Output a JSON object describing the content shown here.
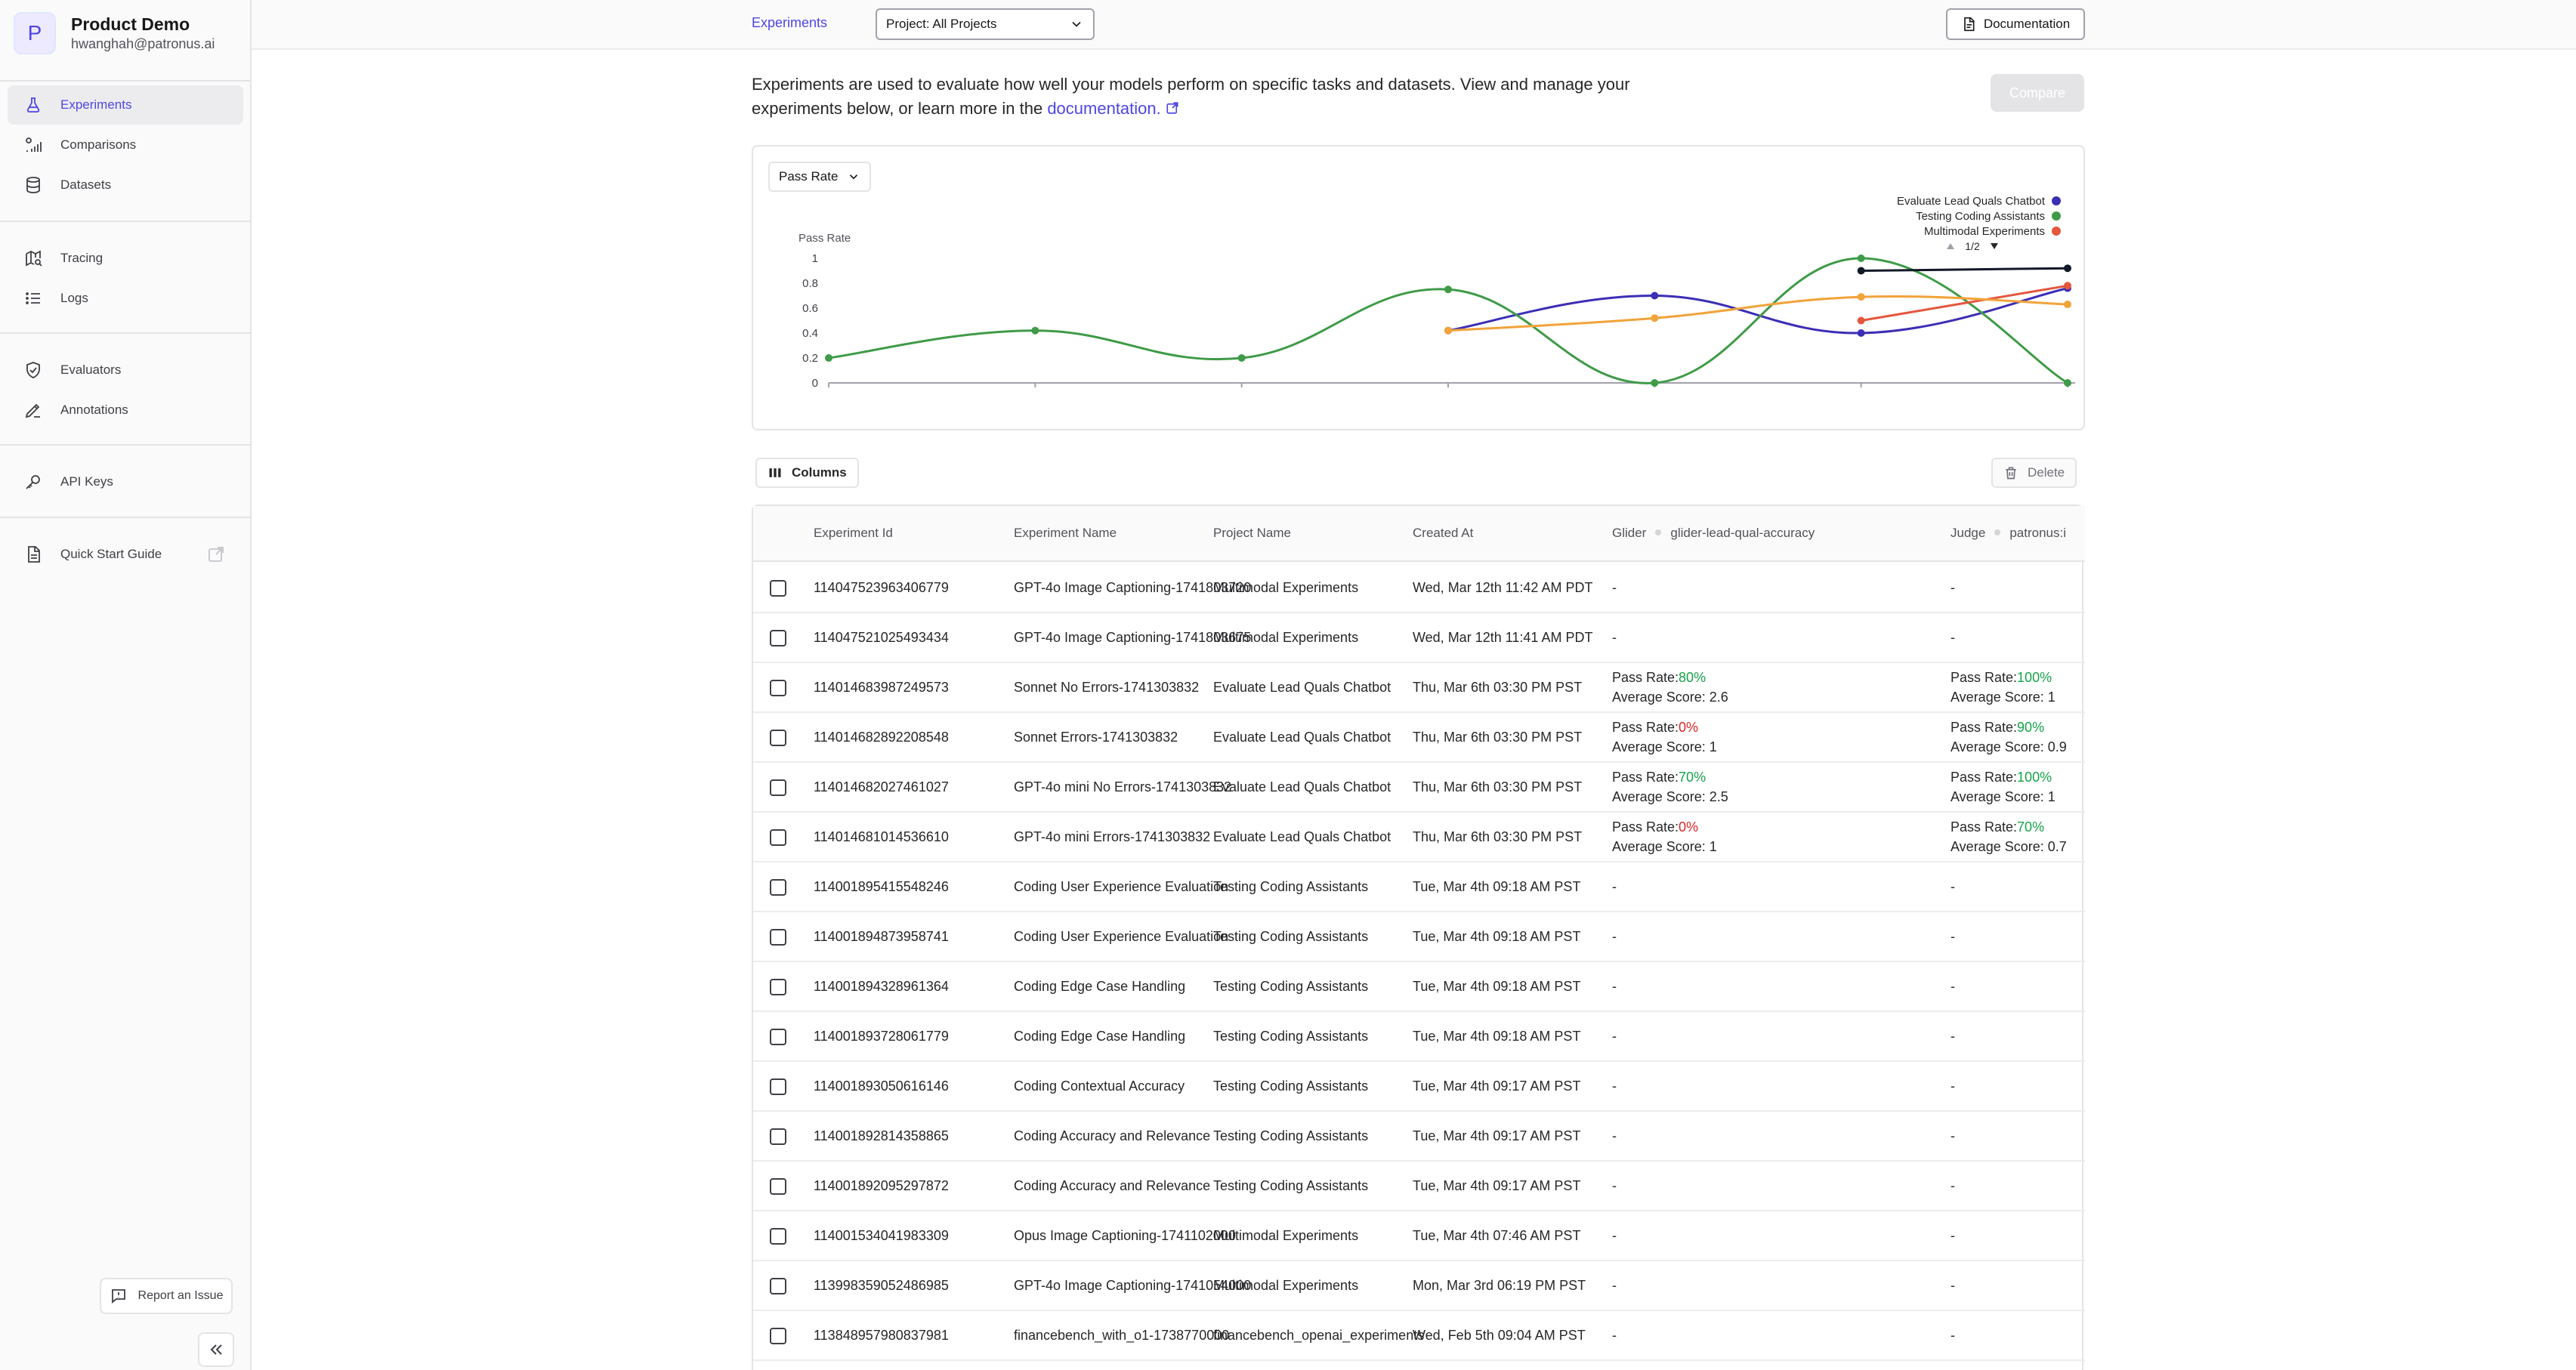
{
  "org": {
    "initial": "P",
    "name": "Product Demo",
    "email": "hwanghah@patronus.ai"
  },
  "nav": {
    "experiments": "Experiments",
    "comparisons": "Comparisons",
    "datasets": "Datasets",
    "tracing": "Tracing",
    "logs": "Logs",
    "evaluators": "Evaluators",
    "annotations": "Annotations",
    "api_keys": "API Keys",
    "quick_start": "Quick Start Guide"
  },
  "report_issue": "Report an Issue",
  "topbar": {
    "breadcrumb": "Experiments",
    "project_select": "Project: All Projects",
    "documentation": "Documentation"
  },
  "intro": {
    "text": "Experiments are used to evaluate how well your models perform on specific tasks and datasets. View and manage your experiments below, or learn more in the ",
    "link": "documentation."
  },
  "compare_button": "Compare",
  "chart_controls": {
    "metric": "Pass Rate",
    "pager": "1/2"
  },
  "chart_data": {
    "type": "line",
    "ylabel": "Pass Rate",
    "ylim": [
      0,
      1
    ],
    "yticks": [
      "0",
      "0.2",
      "0.4",
      "0.6",
      "0.8",
      "1"
    ],
    "legend_position": "top-right",
    "series": [
      {
        "name": "Evaluate Lead Quals Chatbot",
        "color": "#3b2fb5",
        "points": [
          [
            3,
            0.42
          ],
          [
            4,
            0.7
          ],
          [
            5,
            0.4
          ],
          [
            6,
            0.76
          ]
        ]
      },
      {
        "name": "Testing Coding Assistants",
        "color": "#3f9b48",
        "points": [
          [
            0,
            0.2
          ],
          [
            1,
            0.42
          ],
          [
            2,
            0.2
          ],
          [
            3,
            0.75
          ],
          [
            4,
            0.0
          ],
          [
            5,
            1.0
          ],
          [
            6,
            0.0
          ]
        ]
      },
      {
        "name": "Multimodal Experiments",
        "color": "#e4573d",
        "points": [
          [
            5,
            0.5
          ],
          [
            6,
            0.78
          ]
        ]
      },
      {
        "color": "#f2a33a",
        "points": [
          [
            3,
            0.42
          ],
          [
            4,
            0.52
          ],
          [
            5,
            0.69
          ],
          [
            6,
            0.63
          ]
        ]
      },
      {
        "color": "#111827",
        "points": [
          [
            5,
            0.9
          ],
          [
            6,
            0.92
          ]
        ]
      }
    ]
  },
  "toolbar": {
    "columns": "Columns",
    "delete": "Delete"
  },
  "table": {
    "headers": {
      "id": "Experiment Id",
      "name": "Experiment Name",
      "project": "Project Name",
      "created": "Created At",
      "glider": "Glider",
      "glider_criteria": "glider-lead-qual-accuracy",
      "judge": "Judge",
      "judge_criteria": "patronus:i"
    },
    "labels": {
      "pass_rate": "Pass Rate:",
      "avg_score": "Average Score: "
    },
    "rows": [
      {
        "id": "114047523963406779",
        "name": "GPT-4o Image Captioning-1741803720",
        "project": "Multimodal Experiments",
        "created": "Wed, Mar 12th 11:42 AM PDT",
        "glider": "-",
        "judge": "-"
      },
      {
        "id": "114047521025493434",
        "name": "GPT-4o Image Captioning-1741803675",
        "project": "Multimodal Experiments",
        "created": "Wed, Mar 12th 11:41 AM PDT",
        "glider": "-",
        "judge": "-"
      },
      {
        "id": "114014683987249573",
        "name": "Sonnet No Errors-1741303832",
        "project": "Evaluate Lead Quals Chatbot",
        "created": "Thu, Mar 6th 03:30 PM PST",
        "glider_pass": "80%",
        "glider_pass_good": true,
        "glider_avg": "2.6",
        "judge_pass": "100%",
        "judge_pass_good": true,
        "judge_avg": "1"
      },
      {
        "id": "114014682892208548",
        "name": "Sonnet Errors-1741303832",
        "project": "Evaluate Lead Quals Chatbot",
        "created": "Thu, Mar 6th 03:30 PM PST",
        "glider_pass": "0%",
        "glider_pass_good": false,
        "glider_avg": "1",
        "judge_pass": "90%",
        "judge_pass_good": true,
        "judge_avg": "0.9"
      },
      {
        "id": "114014682027461027",
        "name": "GPT-4o mini No Errors-1741303832",
        "project": "Evaluate Lead Quals Chatbot",
        "created": "Thu, Mar 6th 03:30 PM PST",
        "glider_pass": "70%",
        "glider_pass_good": true,
        "glider_avg": "2.5",
        "judge_pass": "100%",
        "judge_pass_good": true,
        "judge_avg": "1"
      },
      {
        "id": "114014681014536610",
        "name": "GPT-4o mini Errors-1741303832",
        "project": "Evaluate Lead Quals Chatbot",
        "created": "Thu, Mar 6th 03:30 PM PST",
        "glider_pass": "0%",
        "glider_pass_good": false,
        "glider_avg": "1",
        "judge_pass": "70%",
        "judge_pass_good": true,
        "judge_avg": "0.7"
      },
      {
        "id": "114001895415548246",
        "name": "Coding User Experience Evaluation",
        "project": "Testing Coding Assistants",
        "created": "Tue, Mar 4th 09:18 AM PST",
        "glider": "-",
        "judge": "-"
      },
      {
        "id": "114001894873958741",
        "name": "Coding User Experience Evaluation",
        "project": "Testing Coding Assistants",
        "created": "Tue, Mar 4th 09:18 AM PST",
        "glider": "-",
        "judge": "-"
      },
      {
        "id": "114001894328961364",
        "name": "Coding Edge Case Handling",
        "project": "Testing Coding Assistants",
        "created": "Tue, Mar 4th 09:18 AM PST",
        "glider": "-",
        "judge": "-"
      },
      {
        "id": "114001893728061779",
        "name": "Coding Edge Case Handling",
        "project": "Testing Coding Assistants",
        "created": "Tue, Mar 4th 09:18 AM PST",
        "glider": "-",
        "judge": "-"
      },
      {
        "id": "114001893050616146",
        "name": "Coding Contextual Accuracy",
        "project": "Testing Coding Assistants",
        "created": "Tue, Mar 4th 09:17 AM PST",
        "glider": "-",
        "judge": "-"
      },
      {
        "id": "114001892814358865",
        "name": "Coding Accuracy and Relevance",
        "project": "Testing Coding Assistants",
        "created": "Tue, Mar 4th 09:17 AM PST",
        "glider": "-",
        "judge": "-"
      },
      {
        "id": "114001892095297872",
        "name": "Coding Accuracy and Relevance",
        "project": "Testing Coding Assistants",
        "created": "Tue, Mar 4th 09:17 AM PST",
        "glider": "-",
        "judge": "-"
      },
      {
        "id": "114001534041983309",
        "name": "Opus Image Captioning-1741102000",
        "project": "Multimodal Experiments",
        "created": "Tue, Mar 4th 07:46 AM PST",
        "glider": "-",
        "judge": "-"
      },
      {
        "id": "113998359052486985",
        "name": "GPT-4o Image Captioning-1741054000",
        "project": "Multimodal Experiments",
        "created": "Mon, Mar 3rd 06:19 PM PST",
        "glider": "-",
        "judge": "-"
      },
      {
        "id": "113848957980837981",
        "name": "financebench_with_o1-1738770000",
        "project": "financebench_openai_experiments",
        "created": "Wed, Feb 5th 09:04 AM PST",
        "glider": "-",
        "judge": "-"
      }
    ]
  }
}
